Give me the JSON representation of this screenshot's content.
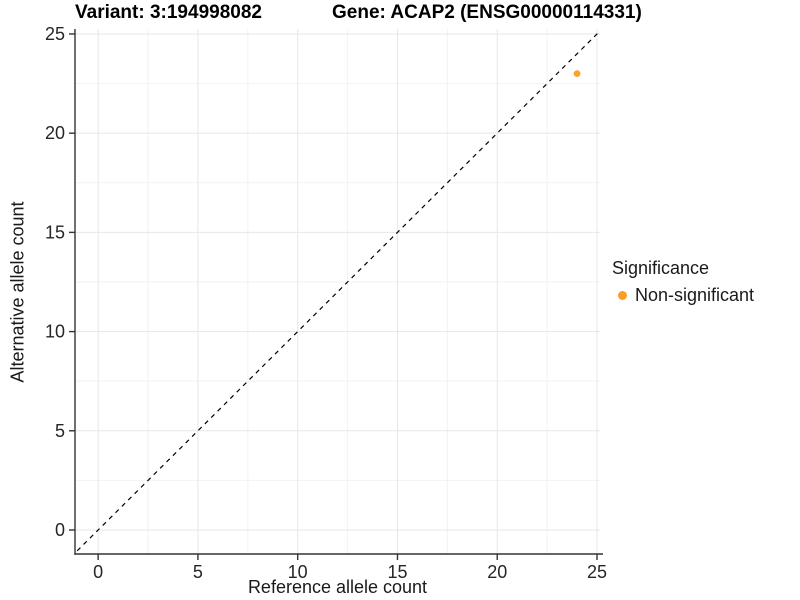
{
  "header": {
    "variant_title": "Variant: 3:194998082",
    "gene_title": "Gene: ACAP2 (ENSG00000114331)"
  },
  "chart_data": {
    "type": "scatter",
    "xlabel": "Reference allele count",
    "ylabel": "Alternative allele count",
    "xticks": [
      0,
      5,
      10,
      15,
      20,
      25
    ],
    "yticks": [
      0,
      5,
      10,
      15,
      20,
      25
    ],
    "minor_ticks": [
      2.5,
      7.5,
      12.5,
      17.5,
      22.5
    ],
    "xlim": [
      -1.16,
      25.15
    ],
    "ylim": [
      -1.21,
      25.25
    ],
    "grid": "major+minor, light gray, white panel background",
    "points": [
      {
        "x": 24,
        "y": 23,
        "series": "Non-significant"
      }
    ],
    "reference_line": {
      "type": "identity",
      "equation": "y = x",
      "style": "dashed",
      "color": "#000000",
      "v_start": -1.05,
      "v_end": 25.1
    },
    "legend": {
      "title": "Significance",
      "position": "right",
      "items": [
        {
          "label": "Non-significant",
          "color": "#FB9E24"
        }
      ]
    },
    "colors": {
      "major_grid": "#e7e7e7",
      "minor_grid": "#f2f2f2",
      "axis_line": "#333333",
      "tick_mark": "#333333"
    }
  }
}
